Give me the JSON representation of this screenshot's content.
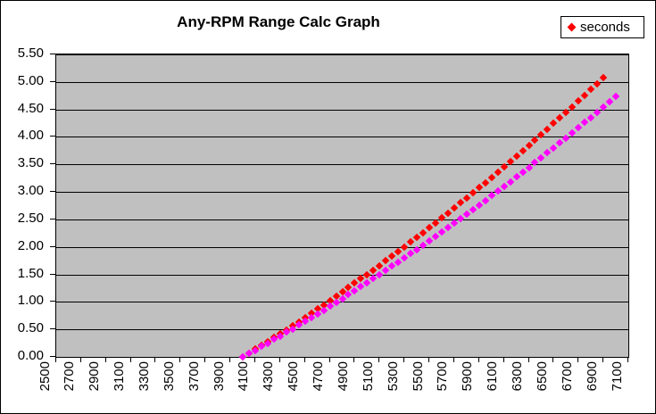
{
  "chart": {
    "title": "Any-RPM Range Calc Graph",
    "legend": {
      "position": "top-right",
      "items": [
        {
          "label": "seconds",
          "marker": "diamond",
          "color": "#FF0000"
        }
      ]
    },
    "colors": {
      "chart_background": "#FFFFFF",
      "plot_background": "#C0C0C0",
      "gridline": "#000000",
      "axis": "#000000",
      "text": "#000000",
      "series1": "#FF0000",
      "series2": "#FF00FF"
    }
  },
  "chart_data": {
    "type": "line",
    "title": "Any-RPM Range Calc Graph",
    "xlabel": "",
    "ylabel": "",
    "xlim": [
      2500,
      7100
    ],
    "ylim": [
      0,
      5.5
    ],
    "grid": "horizontal-only",
    "legend_position": "top-right",
    "line_style": "dense diamond markers forming dashed curve, no connecting line",
    "x_ticks": [
      2500,
      2700,
      2900,
      3100,
      3300,
      3500,
      3700,
      3900,
      4100,
      4300,
      4500,
      4700,
      4900,
      5100,
      5300,
      5500,
      5700,
      5900,
      6100,
      6300,
      6500,
      6700,
      6900,
      7100
    ],
    "x_tick_labels": [
      "2500",
      "2700",
      "2900",
      "3100",
      "3300",
      "3500",
      "3700",
      "3900",
      "4100",
      "4300",
      "4500",
      "4700",
      "4900",
      "5100",
      "5300",
      "5500",
      "5700",
      "5900",
      "6100",
      "6300",
      "6500",
      "6700",
      "6900",
      "7100"
    ],
    "y_ticks": [
      0,
      0.5,
      1,
      1.5,
      2,
      2.5,
      3,
      3.5,
      4,
      4.5,
      5,
      5.5
    ],
    "y_tick_labels": [
      "0.00",
      "0.50",
      "1.00",
      "1.50",
      "2.00",
      "2.50",
      "3.00",
      "3.50",
      "4.00",
      "4.50",
      "5.00",
      "5.50"
    ],
    "series": [
      {
        "name": "seconds",
        "color": "#FF0000",
        "marker": "diamond",
        "in_legend": true,
        "x": [
          4000,
          4050,
          4100,
          4150,
          4200,
          4250,
          4300,
          4350,
          4400,
          4450,
          4500,
          4550,
          4600,
          4650,
          4700,
          4750,
          4800,
          4850,
          4900,
          4950,
          5000,
          5050,
          5100,
          5150,
          5200,
          5250,
          5300,
          5350,
          5400,
          5450,
          5500,
          5550,
          5600,
          5650,
          5700,
          5750,
          5800,
          5850,
          5900,
          5950,
          6000,
          6050,
          6100,
          6150,
          6200,
          6250,
          6300,
          6350,
          6400,
          6450,
          6500,
          6550,
          6600,
          6650,
          6700,
          6750,
          6800,
          6850,
          6900
        ],
        "values": [
          0.0,
          0.07,
          0.14,
          0.21,
          0.28,
          0.35,
          0.42,
          0.49,
          0.57,
          0.64,
          0.72,
          0.79,
          0.87,
          0.94,
          1.02,
          1.1,
          1.18,
          1.26,
          1.34,
          1.42,
          1.5,
          1.58,
          1.66,
          1.75,
          1.83,
          1.92,
          2.0,
          2.09,
          2.17,
          2.26,
          2.35,
          2.44,
          2.53,
          2.62,
          2.71,
          2.8,
          2.89,
          2.98,
          3.08,
          3.17,
          3.26,
          3.36,
          3.46,
          3.55,
          3.65,
          3.75,
          3.85,
          3.94,
          4.04,
          4.14,
          4.25,
          4.35,
          4.45,
          4.55,
          4.66,
          4.76,
          4.87,
          4.97,
          5.08
        ]
      },
      {
        "name": "",
        "color": "#FF00FF",
        "marker": "diamond",
        "in_legend": false,
        "x": [
          4000,
          4050,
          4100,
          4150,
          4200,
          4250,
          4300,
          4350,
          4400,
          4450,
          4500,
          4550,
          4600,
          4650,
          4700,
          4750,
          4800,
          4850,
          4900,
          4950,
          5000,
          5050,
          5100,
          5150,
          5200,
          5250,
          5300,
          5350,
          5400,
          5450,
          5500,
          5550,
          5600,
          5650,
          5700,
          5750,
          5800,
          5850,
          5900,
          5950,
          6000,
          6050,
          6100,
          6150,
          6200,
          6250,
          6300,
          6350,
          6400,
          6450,
          6500,
          6550,
          6600,
          6650,
          6700,
          6750,
          6800,
          6850,
          6900,
          6950,
          7000
        ],
        "values": [
          0.0,
          0.06,
          0.12,
          0.19,
          0.25,
          0.32,
          0.38,
          0.45,
          0.51,
          0.58,
          0.65,
          0.71,
          0.78,
          0.85,
          0.92,
          0.99,
          1.06,
          1.13,
          1.2,
          1.28,
          1.35,
          1.42,
          1.5,
          1.57,
          1.65,
          1.72,
          1.8,
          1.88,
          1.95,
          2.03,
          2.11,
          2.19,
          2.27,
          2.35,
          2.43,
          2.51,
          2.59,
          2.68,
          2.76,
          2.84,
          2.93,
          3.01,
          3.1,
          3.18,
          3.27,
          3.36,
          3.44,
          3.53,
          3.62,
          3.71,
          3.8,
          3.89,
          3.98,
          4.07,
          4.17,
          4.26,
          4.35,
          4.45,
          4.54,
          4.64,
          4.73
        ]
      }
    ]
  }
}
